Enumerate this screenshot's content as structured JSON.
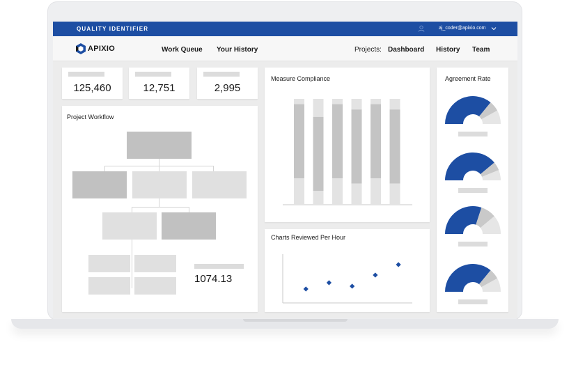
{
  "header": {
    "app_title": "QUALITY IDENTIFIER",
    "user_email": "aj_coder@apixio.com",
    "user_icon": "user-icon",
    "dropdown_icon": "chevron-down-icon"
  },
  "nav": {
    "logo_text": "APIXIO",
    "work_queue": "Work Queue",
    "your_history": "Your History",
    "projects_label": "Projects:",
    "dashboard": "Dashboard",
    "history": "History",
    "team": "Team"
  },
  "stats": [
    {
      "value": "125,460"
    },
    {
      "value": "12,751"
    },
    {
      "value": "2,995"
    }
  ],
  "workflow": {
    "title": "Project Workflow",
    "value": "1074.13"
  },
  "measure_compliance": {
    "title": "Measure Compliance",
    "chart_data": {
      "type": "bar",
      "stacked": true,
      "bars": [
        {
          "top": 0.05,
          "middle": 0.7,
          "bottom": 0.25
        },
        {
          "top": 0.17,
          "middle": 0.7,
          "bottom": 0.13
        },
        {
          "top": 0.05,
          "middle": 0.7,
          "bottom": 0.25
        },
        {
          "top": 0.1,
          "middle": 0.7,
          "bottom": 0.2
        },
        {
          "top": 0.05,
          "middle": 0.7,
          "bottom": 0.25
        },
        {
          "top": 0.1,
          "middle": 0.7,
          "bottom": 0.2
        }
      ],
      "colors": {
        "top": "#e3e3e3",
        "middle": "#c4c4c4",
        "bottom": "#e3e3e3"
      }
    }
  },
  "charts_per_hour": {
    "title": "Charts Reviewed Per Hour",
    "chart_data": {
      "type": "scatter",
      "points": [
        {
          "x": 1,
          "y": 2.0
        },
        {
          "x": 2,
          "y": 2.9
        },
        {
          "x": 3,
          "y": 2.4
        },
        {
          "x": 4,
          "y": 4.0
        },
        {
          "x": 5,
          "y": 5.5
        }
      ],
      "xlim": [
        0,
        5.6
      ],
      "ylim": [
        0,
        7
      ],
      "color": "#1d4ea3"
    }
  },
  "agreement_rate": {
    "title": "Agreement Rate",
    "gauges": [
      {
        "fill": 0.72,
        "mid": 0.12
      },
      {
        "fill": 0.78,
        "mid": 0.1
      },
      {
        "fill": 0.6,
        "mid": 0.18
      },
      {
        "fill": 0.72,
        "mid": 0.12
      }
    ],
    "colors": {
      "fill": "#1d4ea3",
      "mid": "#c9c9c9",
      "rest": "#e6e6e6"
    }
  }
}
